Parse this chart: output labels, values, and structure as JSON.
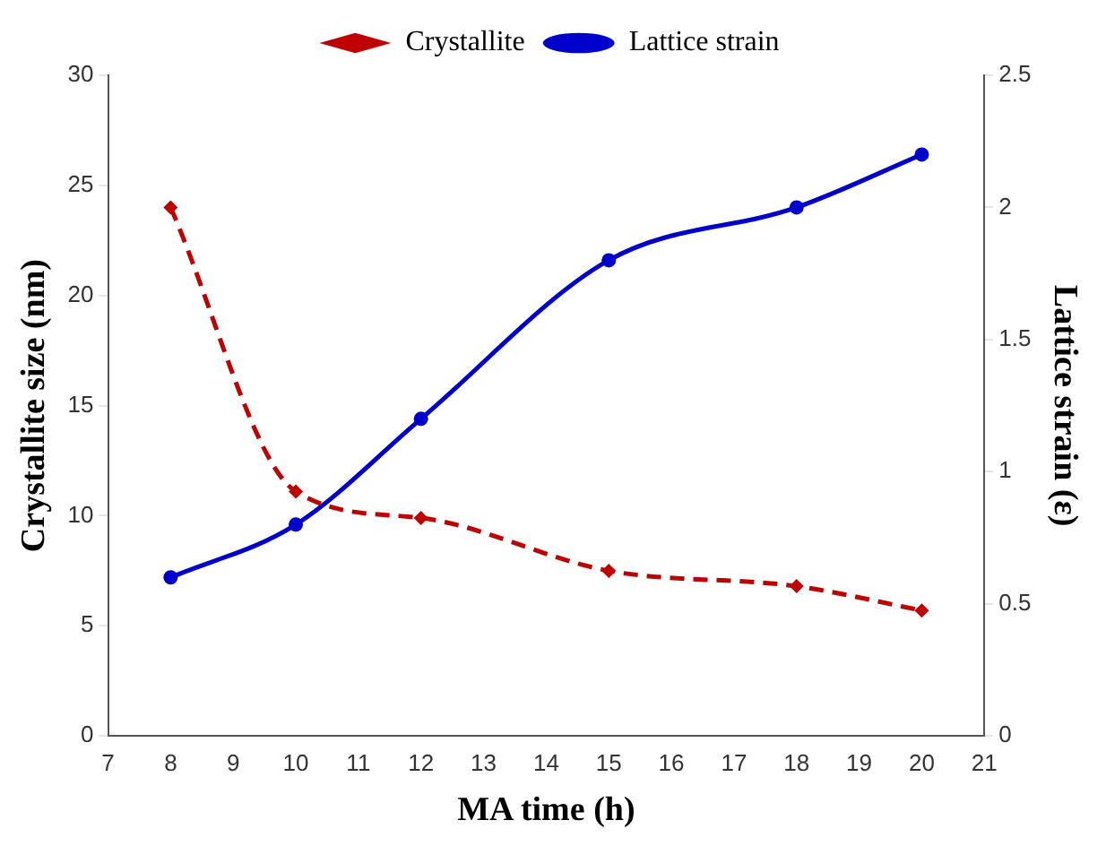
{
  "chart_data": {
    "type": "line",
    "xlabel": "MA time (h)",
    "ylabel": "Crystallite size (nm)",
    "y2label": "Lattice strain (ε)",
    "x": [
      8,
      10,
      12,
      15,
      18,
      20
    ],
    "series": [
      {
        "name": "Crystallite",
        "color": "#c00000",
        "values": [
          24,
          11.1,
          9.9,
          7.5,
          6.8,
          5.7
        ],
        "marker": "diamond",
        "line_style": "dashed"
      },
      {
        "name": "Lattice strain",
        "color": "#0000cc",
        "values": [
          0.6,
          0.8,
          1.2,
          1.8,
          2.0,
          2.2
        ],
        "marker": "circle",
        "line_style": "solid",
        "axis": "y2"
      }
    ],
    "xlim": [
      7,
      21
    ],
    "xticks": [
      7,
      8,
      9,
      10,
      11,
      12,
      13,
      14,
      15,
      16,
      17,
      18,
      19,
      20,
      21
    ],
    "ylim": [
      0,
      30
    ],
    "yticks": [
      0,
      5,
      10,
      15,
      20,
      25,
      30
    ],
    "y2lim": [
      0,
      2.5
    ],
    "y2ticks": [
      0,
      0.5,
      1,
      1.5,
      2,
      2.5
    ],
    "grid": false,
    "legend": "top"
  }
}
